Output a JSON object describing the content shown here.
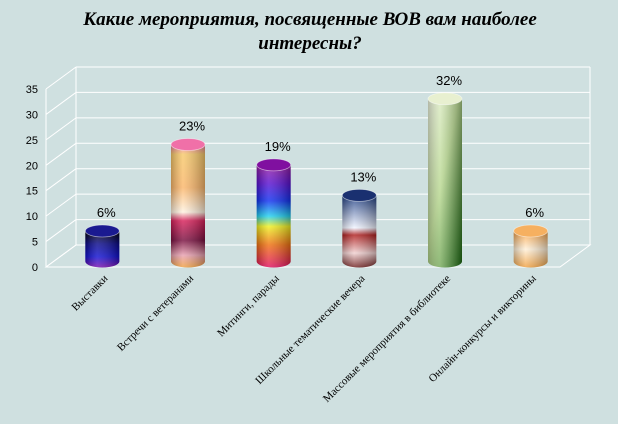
{
  "chart_data": {
    "type": "bar",
    "title": "Какие мероприятия, посвященные  ВОВ вам наиболее интересны?",
    "categories": [
      "Выставки",
      "Встречи с ветеранами",
      "Митинги, парады",
      "Школьные тематические  вечера",
      "Массовые мероприятия в библиотеке",
      "Онлайн-конкурсы и викторины"
    ],
    "values": [
      6,
      23,
      19,
      13,
      32,
      6
    ],
    "data_labels": [
      "6%",
      "23%",
      "19%",
      "13%",
      "32%",
      "6%"
    ],
    "y_ticks": [
      "0",
      "5",
      "10",
      "15",
      "20",
      "25",
      "30",
      "35"
    ],
    "ylim": [
      0,
      35
    ],
    "xlabel": "",
    "ylabel": "",
    "grid": true,
    "legend": "none"
  }
}
